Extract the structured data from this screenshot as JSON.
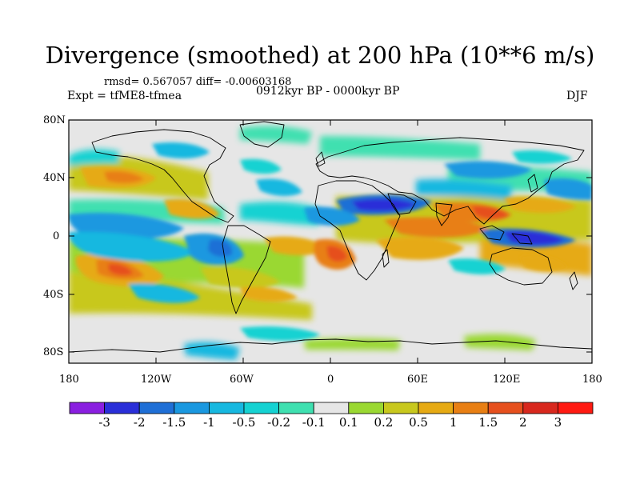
{
  "title": "Divergence (smoothed) at 200 hPa (10**6 m/s)",
  "stats": "rmsd= 0.567057 diff= -0.00603168",
  "experiment": "Expt = tfME8-tfmea",
  "period": "0912kyr BP - 0000kyr BP",
  "season": "DJF",
  "lat_ticks": [
    "80N",
    "40N",
    "0",
    "40S",
    "80S"
  ],
  "lon_ticks": [
    "180",
    "120W",
    "60W",
    "0",
    "60E",
    "120E",
    "180"
  ],
  "colorbar": {
    "labels": [
      "-3",
      "-2",
      "-1.5",
      "-1",
      "-0.5",
      "-0.2",
      "-0.1",
      "0.1",
      "0.2",
      "0.5",
      "1",
      "1.5",
      "2",
      "3"
    ],
    "colors": [
      "#8a1fe0",
      "#2a2fd8",
      "#1f6fd6",
      "#1a98e0",
      "#17b8e0",
      "#15d2d2",
      "#3fe0b0",
      "#e6e6e6",
      "#9ad832",
      "#c8c81e",
      "#e6aa14",
      "#e87f14",
      "#e6501e",
      "#d8281e",
      "#ff1a12"
    ]
  },
  "colors": {
    "land_outline": "#000000",
    "background_field": "#e6e6e6"
  }
}
